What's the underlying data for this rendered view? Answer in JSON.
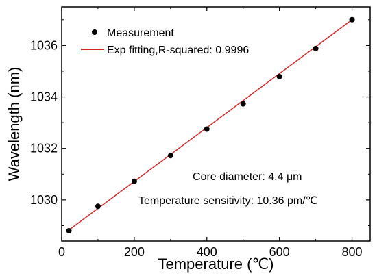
{
  "chart_data": {
    "type": "scatter",
    "title": "",
    "xlabel": "Temperature (℃)",
    "ylabel": "Wavelength (nm)",
    "xlim": [
      0,
      850
    ],
    "ylim": [
      1028.4,
      1037.5
    ],
    "xticks": [
      0,
      200,
      400,
      600,
      800
    ],
    "yticks": [
      1030,
      1032,
      1034,
      1036
    ],
    "x_tick_labels": [
      "0",
      "200",
      "400",
      "600",
      "800"
    ],
    "y_tick_labels": [
      "1030",
      "1032",
      "1034",
      "1036"
    ],
    "grid": false,
    "legend_position": "top-left",
    "series": [
      {
        "name": "Measurement",
        "kind": "scatter",
        "color": "#000000",
        "x": [
          20,
          100,
          200,
          300,
          400,
          500,
          600,
          700,
          800
        ],
        "y": [
          1028.8,
          1029.75,
          1030.72,
          1031.72,
          1032.75,
          1033.73,
          1034.79,
          1035.88,
          1037.0
        ]
      },
      {
        "name": "Exp fitting,R-squared: 0.9996",
        "kind": "line",
        "color": "#d62728",
        "x": [
          20,
          800
        ],
        "y": [
          1028.83,
          1037.0
        ]
      }
    ],
    "annotations": [
      "Core diameter: 4.4 μm",
      "Temperature sensitivity: 10.36 pm/℃"
    ]
  }
}
